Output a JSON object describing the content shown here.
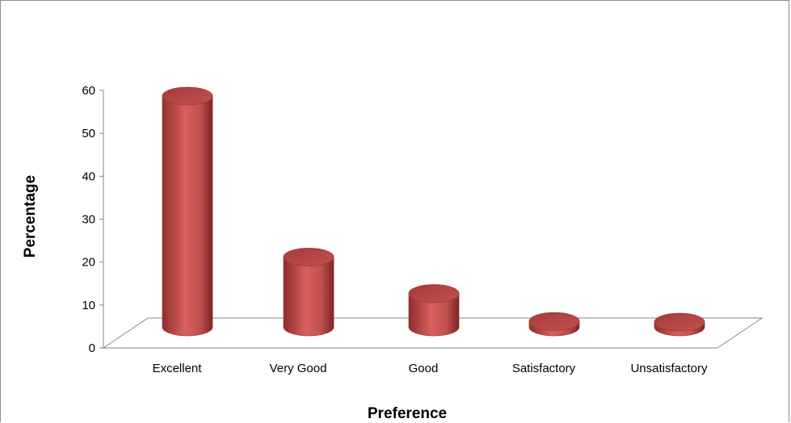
{
  "chart_data": {
    "type": "bar",
    "bar_style": "3d-cylinder",
    "categories": [
      "Excellent",
      "Very Good",
      "Good",
      "Satisfactory",
      "Unsatisfactory"
    ],
    "values": [
      58.5,
      21,
      12.5,
      6,
      3.5
    ],
    "title": "",
    "xlabel": "Preference",
    "ylabel": "Percentage",
    "ylim": [
      0,
      60
    ],
    "yticks": [
      "0",
      "10",
      "20",
      "30",
      "40",
      "50",
      "60"
    ],
    "grid": false,
    "legend": "none",
    "bar_color": "#c0504d"
  }
}
